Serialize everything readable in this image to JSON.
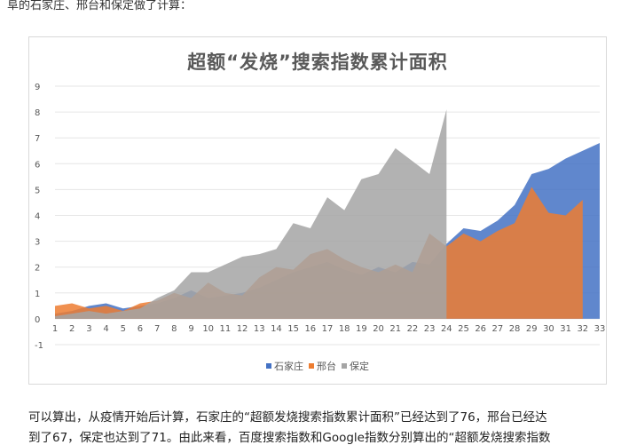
{
  "intro_text": "阜的石家庄、邢台和保定做了计算：",
  "paragraph_line1": "可以算出，从疫情开始后计算，石家庄的“超额发烧搜索指数累计面积”已经达到了76，邢台已经达",
  "paragraph_line2": "到了67，保定也达到了71。由此来看，百度搜索指数和Google指数分别算出的“超额发烧搜索指数",
  "chart_data": {
    "type": "area",
    "title": "超额“发烧”搜索指数累计面积",
    "xlabel": "",
    "ylabel": "",
    "categories": [
      "1",
      "2",
      "3",
      "4",
      "5",
      "6",
      "7",
      "8",
      "9",
      "10",
      "11",
      "12",
      "13",
      "14",
      "15",
      "16",
      "17",
      "18",
      "19",
      "20",
      "21",
      "22",
      "23",
      "24",
      "25",
      "26",
      "27",
      "28",
      "29",
      "30",
      "31",
      "32",
      "33"
    ],
    "ylim": [
      -1,
      9
    ],
    "yticks": [
      "-1",
      "0",
      "1",
      "2",
      "3",
      "4",
      "5",
      "6",
      "7",
      "8",
      "9"
    ],
    "grid": true,
    "legend_position": "bottom",
    "series": [
      {
        "name": "石家庄",
        "color": "#4472C4",
        "values": [
          0.2,
          0.3,
          0.5,
          0.6,
          0.4,
          0.5,
          0.6,
          0.8,
          1.1,
          0.8,
          0.9,
          1.0,
          1.2,
          1.5,
          1.8,
          2.0,
          2.2,
          1.9,
          1.7,
          2.0,
          1.8,
          2.2,
          2.1,
          2.9,
          3.5,
          3.4,
          3.8,
          4.4,
          5.6,
          5.8,
          6.2,
          6.5,
          6.8
        ]
      },
      {
        "name": "邢台",
        "color": "#ED7D31",
        "values": [
          0.5,
          0.6,
          0.4,
          0.5,
          0.3,
          0.6,
          0.7,
          1.0,
          0.8,
          1.4,
          1.0,
          0.9,
          1.6,
          2.0,
          1.9,
          2.5,
          2.7,
          2.3,
          2.0,
          1.8,
          2.1,
          1.8,
          3.3,
          2.8,
          3.3,
          3.0,
          3.4,
          3.7,
          5.1,
          4.1,
          4.0,
          4.6,
          null
        ]
      },
      {
        "name": "保定",
        "color": "#A5A5A5",
        "values": [
          0.1,
          0.2,
          0.3,
          0.2,
          0.3,
          0.4,
          0.8,
          1.1,
          1.8,
          1.8,
          2.1,
          2.4,
          2.5,
          2.7,
          3.7,
          3.5,
          4.7,
          4.2,
          5.4,
          5.6,
          6.6,
          6.1,
          5.6,
          8.1,
          null,
          null,
          null,
          null,
          null,
          null,
          null,
          null,
          null
        ]
      }
    ]
  }
}
